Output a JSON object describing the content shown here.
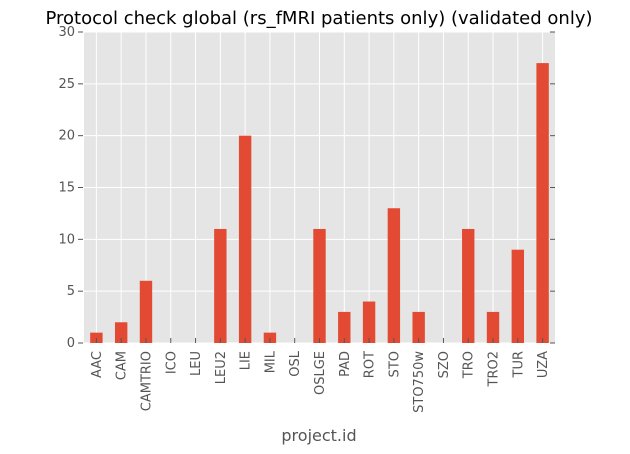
{
  "chart_data": {
    "type": "bar",
    "title": "Protocol check global (rs_fMRI patients only) (validated only)",
    "xlabel": "project.id",
    "ylabel": "",
    "categories": [
      "AAC",
      "CAM",
      "CAMTRIO",
      "ICO",
      "LEU",
      "LEU2",
      "LIE",
      "MIL",
      "OSL",
      "OSLGE",
      "PAD",
      "ROT",
      "STO",
      "STO750w",
      "SZO",
      "TRO",
      "TRO2",
      "TUR",
      "UZA"
    ],
    "values": [
      1,
      2,
      6,
      0,
      0,
      11,
      20,
      1,
      0,
      11,
      3,
      4,
      13,
      3,
      0,
      11,
      3,
      9,
      27
    ],
    "ylim": [
      0,
      30
    ],
    "yticks": [
      0,
      5,
      10,
      15,
      20,
      25,
      30
    ],
    "grid": true,
    "colors": {
      "bar": "#e24a33",
      "plot_background": "#e5e5e5",
      "grid": "#ffffff",
      "text": "#555555"
    }
  }
}
